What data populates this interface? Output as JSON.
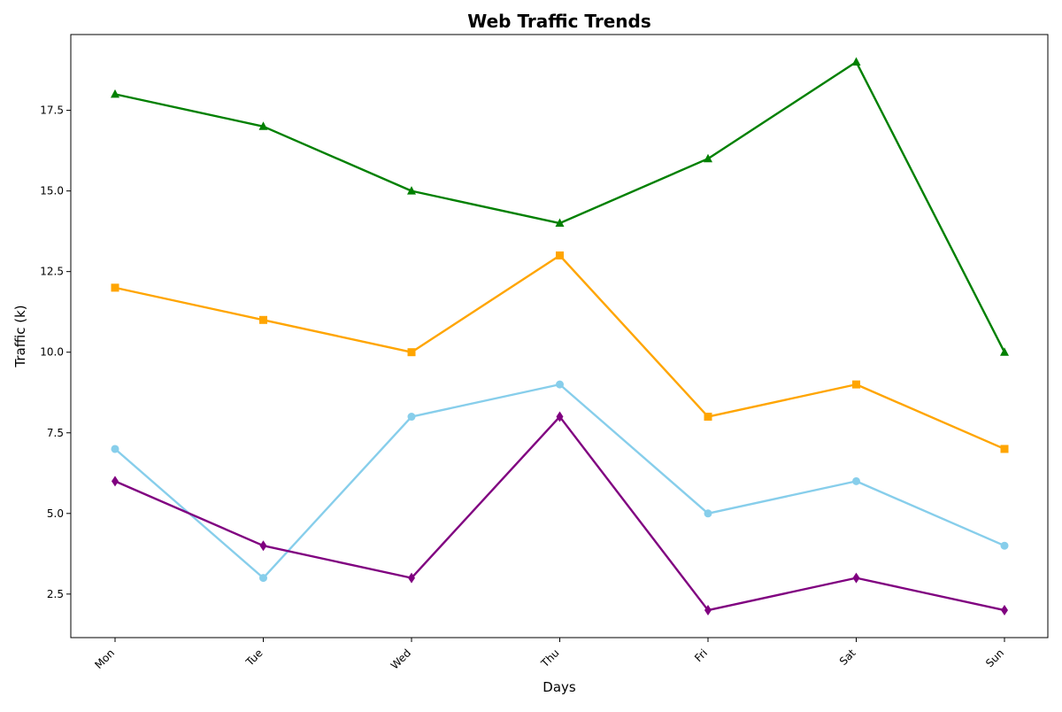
{
  "chart_data": {
    "type": "line",
    "title": "Web Traffic Trends",
    "xlabel": "Days",
    "ylabel": "Traffic (k)",
    "categories": [
      "Mon",
      "Tue",
      "Wed",
      "Thu",
      "Fri",
      "Sat",
      "Sun"
    ],
    "ylim": [
      1.15,
      19.85
    ],
    "yticks": [
      2.5,
      5.0,
      7.5,
      10.0,
      12.5,
      15.0,
      17.5
    ],
    "ytick_labels": [
      "2.5",
      "5.0",
      "7.5",
      "10.0",
      "12.5",
      "15.0",
      "17.5"
    ],
    "xtick_rotation_deg": 45,
    "grid": false,
    "legend": false,
    "series": [
      {
        "values": [
          18,
          17,
          15,
          14,
          16,
          19,
          10
        ],
        "color": "#008000",
        "marker": "triangle"
      },
      {
        "values": [
          12,
          11,
          10,
          13,
          8,
          9,
          7
        ],
        "color": "#FFA500",
        "marker": "square"
      },
      {
        "values": [
          7,
          3,
          8,
          9,
          5,
          6,
          4
        ],
        "color": "#87CEEB",
        "marker": "circle"
      },
      {
        "values": [
          6,
          4,
          3,
          8,
          2,
          3,
          2
        ],
        "color": "#800080",
        "marker": "diamond"
      }
    ]
  }
}
